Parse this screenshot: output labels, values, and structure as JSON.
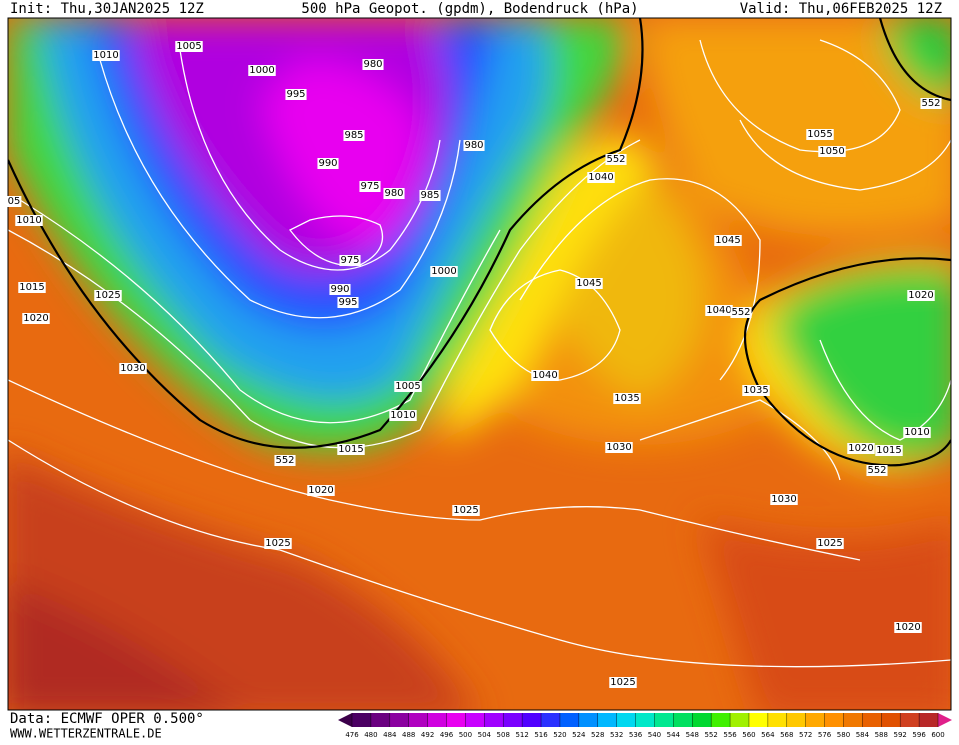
{
  "header": {
    "init": "Init: Thu,30JAN2025 12Z",
    "title": "500 hPa Geopot. (gpdm), Bodendruck (hPa)",
    "valid": "Valid: Thu,06FEB2025 12Z"
  },
  "footer": {
    "data": "Data: ECMWF OPER 0.500°",
    "site": "WWW.WETTERZENTRALE.DE"
  },
  "map": {
    "isobar_labels": [
      1010,
      1005,
      1000,
      980,
      995,
      985,
      980,
      990,
      975,
      980,
      985,
      975,
      990,
      995,
      1000,
      1005,
      1010,
      1015,
      1020,
      1025,
      1025,
      1030,
      1010,
      "05",
      1015,
      1020,
      1025,
      552,
      552,
      1040,
      1045,
      1040,
      1035,
      1030,
      1040,
      552,
      1045,
      1055,
      1050,
      552,
      1020,
      1035,
      1030,
      1025,
      1020,
      1025,
      1020,
      1015,
      1010,
      552
    ]
  },
  "colorbar": {
    "ticks": [
      476,
      480,
      484,
      488,
      492,
      496,
      500,
      504,
      508,
      512,
      516,
      520,
      524,
      528,
      532,
      536,
      540,
      544,
      548,
      552,
      556,
      560,
      564,
      568,
      572,
      576,
      580,
      584,
      588,
      592,
      596,
      600
    ],
    "colors": [
      "#3c004a",
      "#4b0063",
      "#6a0080",
      "#8b00a0",
      "#b000c0",
      "#d000e0",
      "#e800f0",
      "#c800ff",
      "#a000ff",
      "#7a00ff",
      "#5000ff",
      "#2a30ff",
      "#0060ff",
      "#0090ff",
      "#00b8ff",
      "#00d8f0",
      "#00e8c8",
      "#00e890",
      "#00e060",
      "#00d830",
      "#40f000",
      "#a0f000",
      "#ffff00",
      "#ffe000",
      "#ffc800",
      "#ffa800",
      "#ff9000",
      "#f07800",
      "#e86000",
      "#e05000",
      "#d04020",
      "#b82828",
      "#e0208a"
    ]
  }
}
